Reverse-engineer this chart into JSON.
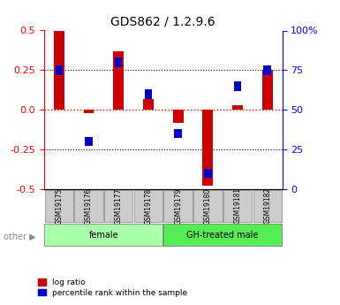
{
  "title": "GDS862 / 1.2.9.6",
  "samples": [
    "GSM19175",
    "GSM19176",
    "GSM19177",
    "GSM19178",
    "GSM19179",
    "GSM19180",
    "GSM19181",
    "GSM19182"
  ],
  "log_ratio": [
    0.5,
    -0.02,
    0.37,
    0.07,
    -0.08,
    -0.48,
    0.03,
    0.25
  ],
  "percentile_rank": [
    75,
    30,
    80,
    60,
    35,
    10,
    65,
    75
  ],
  "groups": [
    {
      "label": "female",
      "start": 0,
      "end": 4,
      "color": "#aaffaa"
    },
    {
      "label": "GH-treated male",
      "start": 4,
      "end": 8,
      "color": "#55ee55"
    }
  ],
  "ylim_left": [
    -0.5,
    0.5
  ],
  "ylim_right": [
    0,
    100
  ],
  "yticks_left": [
    -0.5,
    -0.25,
    0.0,
    0.25,
    0.5
  ],
  "yticks_right": [
    0,
    25,
    50,
    75,
    100
  ],
  "bar_color_red": "#cc0000",
  "bar_color_blue": "#0000cc",
  "zero_line_color": "#ff0000",
  "legend_label_red": "log ratio",
  "legend_label_blue": "percentile rank within the sample",
  "other_label": "other"
}
